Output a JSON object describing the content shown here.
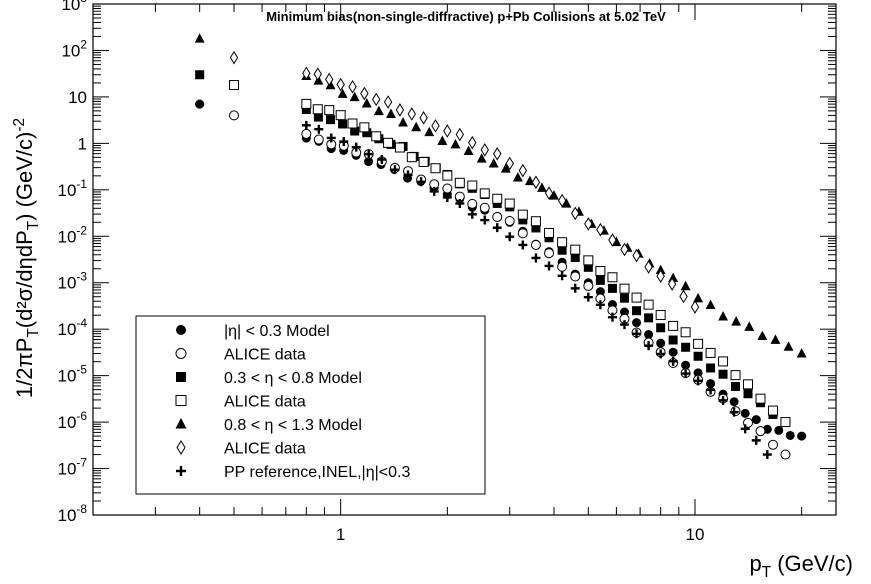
{
  "chart_data": {
    "type": "scatter",
    "title": "Minimum bias(non-single-diffractive) p+Pb Collisions at 5.02 TeV",
    "xlabel": "p_T (GeV/c)",
    "ylabel": "1/2πP_T(d²σ/dηdP_T) (GeV/c)^-2",
    "xscale": "log",
    "yscale": "log",
    "xlim": [
      0.2,
      25
    ],
    "ylim": [
      1e-08,
      1000.0
    ],
    "x_tick_labels": [
      "1",
      "10"
    ],
    "y_tick_labels": [
      "10^-8",
      "10^-7",
      "10^-6",
      "10^-5",
      "10^-4",
      "10^-3",
      "10^-2",
      "10^-1",
      "1",
      "10",
      "10^2",
      "10^3"
    ],
    "legend_position": "bottom-left",
    "series": [
      {
        "name": "|η| < 0.3  Model",
        "marker": "filled-circle",
        "x": [
          0.4,
          0.8,
          1.3,
          2.0,
          3.0,
          5.0,
          8.0,
          12.0,
          16.0,
          20.0
        ],
        "y": [
          7,
          1.3,
          0.35,
          0.08,
          0.02,
          0.001,
          5e-05,
          4e-06,
          7e-07,
          5e-07
        ]
      },
      {
        "name": "ALICE data",
        "marker": "open-circle",
        "x": [
          0.5,
          0.8,
          1.2,
          2.0,
          3.0,
          5.0,
          8.0,
          12.0,
          18.0
        ],
        "y": [
          4,
          1.5,
          0.55,
          0.1,
          0.02,
          0.0008,
          3e-05,
          3e-06,
          2e-07
        ]
      },
      {
        "name": "0.3 < η < 0.8 Model",
        "marker": "filled-square",
        "x": [
          0.4,
          0.8,
          1.5,
          2.0,
          3.0,
          5.0,
          8.0,
          12.0,
          18.0
        ],
        "y": [
          30,
          5,
          0.8,
          0.2,
          0.04,
          0.002,
          0.0001,
          1e-05,
          1e-06
        ]
      },
      {
        "name": "ALICE data",
        "marker": "open-square",
        "x": [
          0.5,
          0.8,
          1.0,
          2.0,
          3.0,
          5.0,
          8.0,
          12.0,
          18.0
        ],
        "y": [
          18,
          7,
          4,
          0.2,
          0.05,
          0.003,
          0.0002,
          2e-05,
          1e-06
        ]
      },
      {
        "name": " 0.8 < η < 1.3 Model",
        "marker": "filled-triangle",
        "x": [
          0.4,
          0.8,
          1.5,
          2.5,
          4.0,
          6.0,
          8.0,
          12.0,
          20.0
        ],
        "y": [
          180,
          30,
          3,
          0.5,
          0.08,
          0.008,
          0.002,
          0.0002,
          3e-05
        ]
      },
      {
        "name": "ALICE data",
        "marker": "open-diamond",
        "x": [
          0.5,
          0.8,
          1.0,
          2.0,
          3.0,
          5.0,
          8.0,
          10.0
        ],
        "y": [
          70,
          35,
          20,
          2,
          0.4,
          0.02,
          0.0015,
          0.0003
        ]
      },
      {
        "name": "PP reference,INEL,|η|<0.3",
        "marker": "plus",
        "x": [
          0.4,
          0.8,
          1.2,
          2.0,
          3.0,
          5.0,
          8.0,
          12.0,
          16.0
        ],
        "y": [
          7,
          2.5,
          0.6,
          0.07,
          0.01,
          0.0005,
          3e-05,
          3e-06,
          2e-07
        ]
      }
    ]
  }
}
